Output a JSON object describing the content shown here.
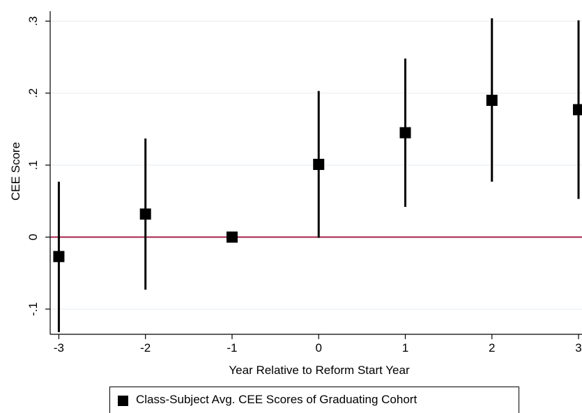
{
  "chart_data": {
    "type": "scatter",
    "title": "",
    "xlabel": "Year Relative to Reform Start Year",
    "ylabel": "CEE Score",
    "x_ticks": [
      -3,
      -2,
      -1,
      0,
      1,
      2,
      3
    ],
    "x_tick_labels": [
      "-3",
      "-2",
      "-1",
      "0",
      "1",
      "2",
      "3"
    ],
    "y_ticks": [
      -0.1,
      0,
      0.1,
      0.2,
      0.3
    ],
    "y_tick_labels": [
      "-.1",
      "0",
      ".1",
      ".2",
      ".3"
    ],
    "xlim": [
      -3.1,
      3.04
    ],
    "ylim": [
      -0.135,
      0.31
    ],
    "grid": true,
    "reference_line": {
      "y": 0,
      "color": "#a0153e"
    },
    "legend_position": "bottom",
    "series": [
      {
        "name": "Class-Subject Avg. CEE Scores of Graduating Cohort",
        "color": "#000000",
        "marker": "square",
        "points": [
          {
            "x": -3,
            "y": -0.027,
            "ci_low": -0.132,
            "ci_high": 0.077
          },
          {
            "x": -2,
            "y": 0.032,
            "ci_low": -0.073,
            "ci_high": 0.137
          },
          {
            "x": -1,
            "y": 0.0,
            "ci_low": 0.0,
            "ci_high": 0.0
          },
          {
            "x": 0,
            "y": 0.101,
            "ci_low": -0.001,
            "ci_high": 0.203
          },
          {
            "x": 1,
            "y": 0.145,
            "ci_low": 0.042,
            "ci_high": 0.248
          },
          {
            "x": 2,
            "y": 0.19,
            "ci_low": 0.077,
            "ci_high": 0.304
          },
          {
            "x": 3,
            "y": 0.177,
            "ci_low": 0.053,
            "ci_high": 0.301
          }
        ]
      }
    ]
  }
}
